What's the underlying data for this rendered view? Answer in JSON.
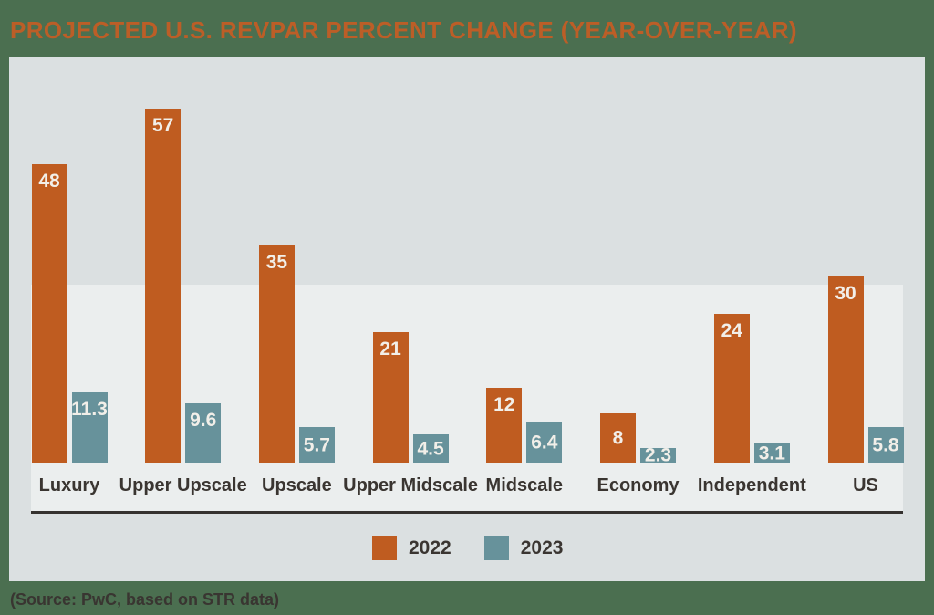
{
  "source_note": "(Source: PwC, based on STR data)",
  "colors": {
    "background": "#4b6f50",
    "panel": "#dbe0e1",
    "panel_highlight": "#ebeeee",
    "title": "#bc5e27",
    "text_dark": "#3a3531",
    "value_text": "#f2efe9",
    "axis_line": "#35322f"
  },
  "chart_data": {
    "type": "bar",
    "title": "PROJECTED U.S. REVPAR PERCENT CHANGE (YEAR-OVER-YEAR)",
    "categories": [
      "Luxury",
      "Upper Upscale",
      "Upscale",
      "Upper Midscale",
      "Midscale",
      "Economy",
      "Independent",
      "US"
    ],
    "series": [
      {
        "name": "2022",
        "color": "#bf5c20",
        "values": [
          48,
          57,
          35,
          21,
          12,
          8,
          24,
          30
        ],
        "labels": [
          "48",
          "57",
          "35",
          "21",
          "12",
          "8",
          "24",
          "30"
        ]
      },
      {
        "name": "2023",
        "color": "#67929b",
        "values": [
          11.3,
          9.6,
          5.7,
          4.5,
          6.4,
          2.3,
          3.1,
          5.8
        ],
        "labels": [
          "11.3",
          "9.6",
          "5.7",
          "4.5",
          "6.4",
          "2.3",
          "3.1",
          "5.8"
        ]
      }
    ],
    "xlabel": "",
    "ylabel": "",
    "ylim": [
      0,
      60
    ],
    "grid": false,
    "value_labels_shown": true,
    "legend_position": "bottom"
  }
}
